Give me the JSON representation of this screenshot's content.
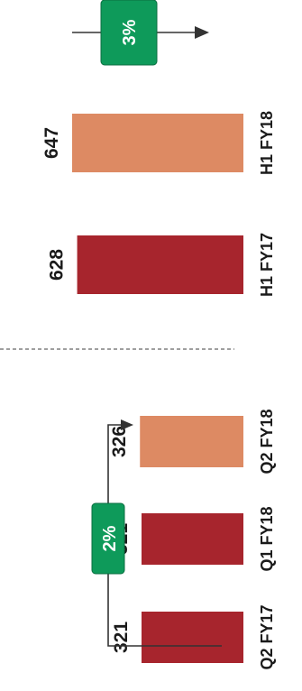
{
  "chart_data": {
    "type": "bar",
    "orientation": "vertical",
    "groups": [
      {
        "categories": [
          "Q2 FY17",
          "Q1 FY18",
          "Q2 FY18"
        ],
        "values": [
          321,
          321,
          326
        ],
        "colors": [
          "#a7252d",
          "#a7252d",
          "#dd8a63"
        ],
        "growth_badge": "2%"
      },
      {
        "categories": [
          "H1 FY17",
          "H1 FY18"
        ],
        "values": [
          628,
          647
        ],
        "colors": [
          "#a7252d",
          "#dd8a63"
        ],
        "growth_badge": "3%"
      }
    ],
    "value_labels": [
      "321",
      "321",
      "326",
      "628",
      "647"
    ],
    "title": "",
    "xlabel": "",
    "ylabel": "",
    "grid": false,
    "legend": "none",
    "colors": {
      "prior_period": "#a7252d",
      "current_period": "#dd8a63",
      "badge": "#0e9a5a",
      "separator": "#666666",
      "text": "#1a1a1a"
    }
  }
}
